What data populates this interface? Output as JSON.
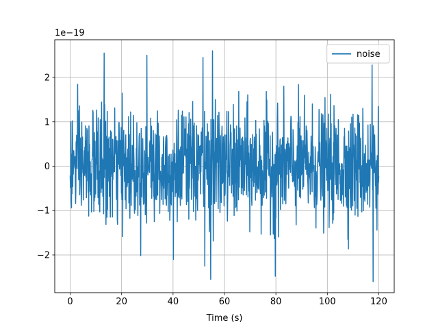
{
  "chart_data": {
    "type": "line",
    "title": "",
    "xlabel": "Time (s)",
    "ylabel": "",
    "y_offset_text": "1e−19",
    "xlim": [
      -6,
      126
    ],
    "ylim": [
      -2.85,
      2.85
    ],
    "x_ticks": [
      0,
      20,
      40,
      60,
      80,
      100,
      120
    ],
    "y_ticks": [
      -2,
      -1,
      0,
      1,
      2
    ],
    "x_tick_labels": [
      "0",
      "20",
      "40",
      "60",
      "80",
      "100",
      "120"
    ],
    "y_tick_labels": [
      "−2",
      "−1",
      "0",
      "1",
      "2"
    ],
    "grid": true,
    "legend_position": "top-right",
    "series": [
      {
        "name": "noise",
        "color": "#1f77b4",
        "x_range": [
          0,
          120
        ],
        "samples": 1200,
        "y_min": -2.6,
        "y_max": 2.6,
        "y_std": 0.62,
        "notable_peaks": [
          {
            "x": 13.2,
            "y": 2.55
          },
          {
            "x": 29.8,
            "y": 2.5
          },
          {
            "x": 51.6,
            "y": 2.45
          },
          {
            "x": 55.3,
            "y": 2.6
          },
          {
            "x": 117.4,
            "y": 2.28
          },
          {
            "x": 40.1,
            "y": -2.1
          },
          {
            "x": 52.3,
            "y": -2.25
          },
          {
            "x": 54.6,
            "y": -2.55
          },
          {
            "x": 79.8,
            "y": -2.48
          },
          {
            "x": 117.8,
            "y": -2.6
          }
        ]
      }
    ]
  }
}
